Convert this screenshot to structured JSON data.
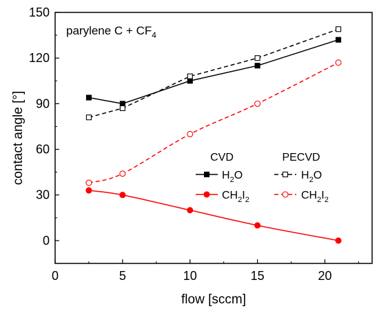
{
  "chart_data": {
    "type": "line",
    "annotation": "parylene C + CF4",
    "annotation_parts": {
      "text": "parylene C + CF",
      "subscript": "4"
    },
    "xlabel": "flow [sccm]",
    "ylabel": "contact angle [°]",
    "xlim": [
      0,
      23.5
    ],
    "ylim": [
      -15,
      150
    ],
    "xticks": [
      0,
      5,
      10,
      15,
      20
    ],
    "yticks": [
      0,
      30,
      60,
      90,
      120,
      150
    ],
    "grid": false,
    "legend_position": "center-right",
    "legend_headers": [
      "CVD",
      "PECVD"
    ],
    "x": [
      2.5,
      5,
      10,
      15,
      21
    ],
    "series": [
      {
        "name": "H2O",
        "method": "CVD",
        "label_parts": [
          "H",
          "2",
          "O"
        ],
        "color": "#000000",
        "marker": "filled-square",
        "line": "solid",
        "values": [
          94,
          90,
          105,
          115,
          132
        ]
      },
      {
        "name": "CH2I2",
        "method": "CVD",
        "label_parts": [
          "CH",
          "2",
          "I",
          "2"
        ],
        "color": "#ff0000",
        "marker": "filled-circle",
        "line": "solid",
        "values": [
          33,
          30,
          20,
          10,
          0
        ]
      },
      {
        "name": "H2O",
        "method": "PECVD",
        "label_parts": [
          "H",
          "2",
          "O"
        ],
        "color": "#000000",
        "marker": "open-square",
        "line": "dashed",
        "values": [
          81,
          87,
          108,
          120,
          139
        ]
      },
      {
        "name": "CH2I2",
        "method": "PECVD",
        "label_parts": [
          "CH",
          "2",
          "I",
          "2"
        ],
        "color": "#ff0000",
        "marker": "open-circle",
        "line": "dashed",
        "values": [
          38,
          44,
          70,
          90,
          117
        ]
      }
    ]
  }
}
